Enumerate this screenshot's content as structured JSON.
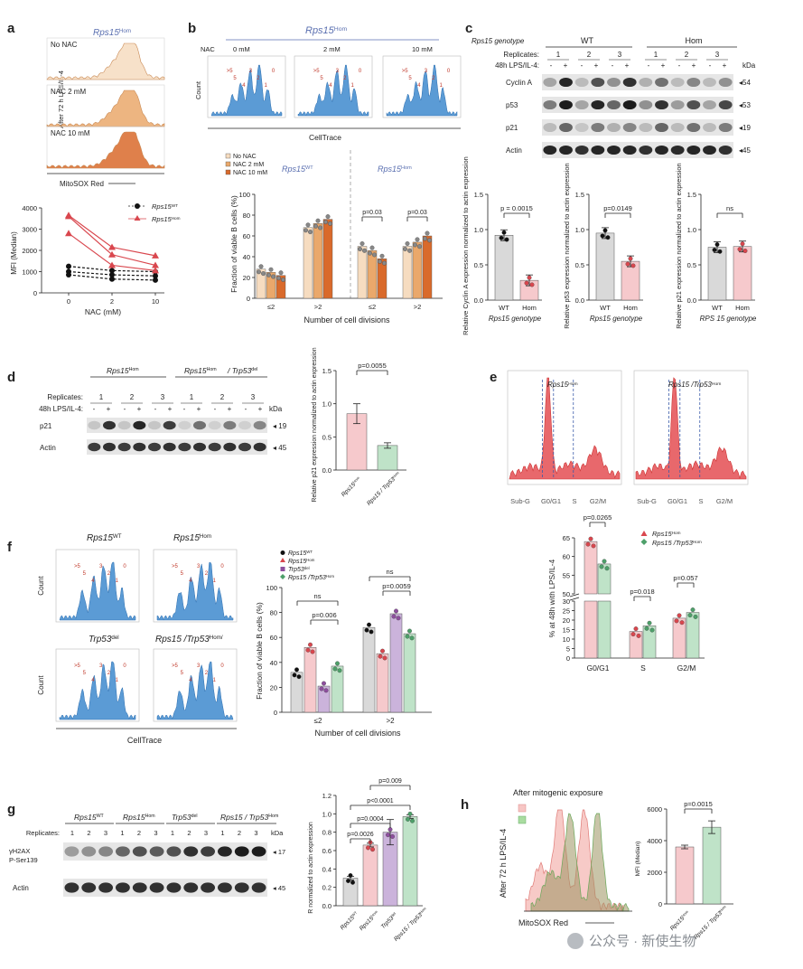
{
  "panel_letters": [
    "a",
    "b",
    "c",
    "d",
    "e",
    "f",
    "g",
    "h"
  ],
  "colors": {
    "wt": "#111111",
    "hom": "#d9474e",
    "trp53": "#8e4f9e",
    "dbl": "#4ea06a",
    "nac0": "#f6dcc0",
    "nac2": "#eaa86b",
    "nac10": "#d96a2b",
    "blue_hist": "#5b9bd5",
    "red_hist": "#e8686c",
    "wt_fill": "#d9d9d9",
    "hom_fill": "#f6c9cc",
    "trp_fill": "#cbb3db",
    "dbl_fill": "#bfe3c8",
    "title_blue": "#5a6fb0"
  },
  "panel_a": {
    "title": "Rps15",
    "title_sup": "Hom",
    "ylabel": "After 72 h LPS/IL-4",
    "xlabel": "MitoSOX Red",
    "hist_labels": [
      "No NAC",
      "NAC 2 mM",
      "NAC 10 mM"
    ],
    "legend": [
      "Rps15",
      "Rps15"
    ],
    "legend_sup": [
      "WT",
      "Hom"
    ]
  },
  "panel_b": {
    "title": "Rps15",
    "title_sup": "Hom",
    "nac_label": "NAC",
    "conc_labels": [
      "0 mM",
      "2 mM",
      "10 mM"
    ],
    "count_label": "Count",
    "xlabel_hist": "CellTrace",
    "peak_labels": [
      ">5",
      "5",
      "4",
      "3",
      "2",
      "1",
      "0"
    ],
    "group_titles": [
      "Rps15",
      "Rps15"
    ],
    "group_sups": [
      "WT",
      "Hom"
    ],
    "pvals": [
      "p=0.03",
      "p=0.03"
    ]
  },
  "panel_c": {
    "row1": [
      "Rps15 genotype",
      "WT",
      "Hom"
    ],
    "replicates_label": "Replicates:",
    "replicates": [
      "1",
      "2",
      "3",
      "1",
      "2",
      "3"
    ],
    "lps_label": "48h LPS/IL-4:",
    "signs": [
      "-",
      "+",
      "-",
      "+",
      "-",
      "+",
      "-",
      "+",
      "-",
      "+",
      "-",
      "+"
    ],
    "kda": "kDa",
    "bands": [
      "Cyclin A",
      "p53",
      "p21",
      "Actin"
    ],
    "band_kda": [
      "54",
      "53",
      "19",
      "45"
    ],
    "sub_titles": [
      "Relative Cyclin A expression normalized to actin expression",
      "Relative p53 expression normalized to actin expression",
      "Relative p21 expression normalized to actin expression"
    ],
    "sub_xlabels": [
      "Rps15 genotype",
      "Rps15 genotype",
      "RPS 15 genotype"
    ],
    "categories": [
      "WT",
      "Hom"
    ],
    "pvals": [
      "p = 0.0015",
      "p=0.0149",
      "ns"
    ]
  },
  "panel_d": {
    "groups": [
      "Rps15",
      "Rps15",
      "/ Trp53"
    ],
    "group_sups": [
      "Hom",
      "Hom",
      "del"
    ],
    "replicates_label": "Replicates:",
    "replicates": [
      "1",
      "2",
      "3",
      "1",
      "2",
      "3"
    ],
    "lps_label": "48h LPS/IL-4:",
    "signs": [
      "-",
      "+",
      "-",
      "+",
      "-",
      "+",
      "-",
      "+",
      "-",
      "+",
      "-",
      "+"
    ],
    "kda": "kDa",
    "bands": [
      "p21",
      "Actin"
    ],
    "band_kda": [
      "19",
      "45"
    ],
    "ylabel": "Relative p21 expression normalized to actin expression",
    "categories": [
      "Rps15",
      "Rps15 / Trp53"
    ],
    "category_sups": [
      "Hom",
      "Hom",
      "del"
    ],
    "pval": "p=0.0055"
  },
  "panel_e": {
    "hist_titles": [
      "Rps15",
      "Rps15 /Trp53"
    ],
    "hist_sups": [
      "Hom",
      "Hom",
      "del"
    ],
    "hist_xlabels": [
      "Sub-G",
      "G0/G1",
      "S",
      "G2/M"
    ],
    "ylabel": "% at 48h with LPS/IL-4",
    "legend": [
      "Rps15",
      "Rps15 /Trp53"
    ],
    "legend_sups": [
      "Hom",
      "Hom",
      "del"
    ],
    "categories": [
      "G0/G1",
      "S",
      "G2/M"
    ],
    "pvals": [
      "p=0.0265",
      "p=0.018",
      "p=0.057"
    ]
  },
  "panel_f": {
    "hist_titles": [
      "Rps15",
      "Rps15",
      "Trp53",
      "Rps15 /Trp53"
    ],
    "hist_sups": [
      "WT",
      "Hom",
      "del",
      "Hom",
      "del"
    ],
    "count_label": "Count",
    "xlabel_hist": "CellTrace",
    "peak_labels": [
      ">5",
      "5",
      "4",
      "3",
      "2",
      "1",
      "0"
    ],
    "ylabel": "Fraction of viable B cells (%)",
    "xlabel": "Number of cell divisions",
    "legend": [
      "Rps15",
      "Rps15",
      "Trp53",
      "Rps15 /Trp53"
    ],
    "legend_sups": [
      "WT",
      "Hom",
      "del",
      "Hom",
      "del"
    ],
    "pvals_left": [
      "ns",
      "p=0.006"
    ],
    "pvals_right": [
      "ns",
      "p=0.0059"
    ]
  },
  "panel_g": {
    "groups": [
      "Rps15",
      "Rps15",
      "Trp53",
      "Rps15 / Trp53"
    ],
    "group_sups": [
      "WT",
      "Hom",
      "del",
      "Hom",
      "del"
    ],
    "replicates_label": "Replicates:",
    "replicates": [
      "1",
      "2",
      "3",
      "1",
      "2",
      "3",
      "1",
      "2",
      "3",
      "1",
      "2",
      "3"
    ],
    "bands": [
      "γH2AX P-Ser139",
      "Actin"
    ],
    "band_kda": [
      "17",
      "45"
    ],
    "kda": "kDa",
    "ylabel": "R normalized to actin expression",
    "categories": [
      "Rps15",
      "Rps15",
      "Trp53",
      "Rps15 / Trp53"
    ],
    "category_sups": [
      "WT",
      "Hom",
      "del",
      "Hom",
      "del"
    ],
    "pvals": [
      "p=0.0026",
      "p=0.0004",
      "p<0.0001",
      "p=0.009"
    ]
  },
  "panel_h": {
    "title": "After mitogenic exposure",
    "ylabel": "After 72 h LPS/IL-4",
    "xlabel": "MitoSOX Red",
    "bar_ylabel": "MFI (Median)",
    "categories": [
      "Rps15",
      "Rps15 / Trp53"
    ],
    "category_sups": [
      "Hom",
      "Hom",
      "del"
    ],
    "pval": "p=0.0015"
  },
  "watermark": "公众号 · 新使生物",
  "chart_data": [
    {
      "panel": "a",
      "type": "line",
      "xlabel": "NAC (mM)",
      "ylabel": "MFI (Median)",
      "x": [
        0,
        2,
        10
      ],
      "xticks": [
        "0",
        "2",
        "10"
      ],
      "ylim": [
        0,
        4000
      ],
      "yticks": [
        0,
        1000,
        2000,
        3000,
        4000
      ],
      "series": [
        {
          "name": "Rps15 WT",
          "style": "dashed",
          "color": "#111111",
          "marker": "circle",
          "values": [
            1250,
            1050,
            1000
          ]
        },
        {
          "name": "Rps15 WT",
          "style": "dashed",
          "color": "#111111",
          "marker": "circle",
          "values": [
            1000,
            850,
            800
          ]
        },
        {
          "name": "Rps15 WT",
          "style": "dashed",
          "color": "#111111",
          "marker": "circle",
          "values": [
            850,
            650,
            600
          ]
        },
        {
          "name": "Rps15 Hom",
          "style": "solid",
          "color": "#d9474e",
          "marker": "triangle",
          "values": [
            3650,
            2150,
            1750
          ]
        },
        {
          "name": "Rps15 Hom",
          "style": "solid",
          "color": "#d9474e",
          "marker": "triangle",
          "values": [
            3600,
            1800,
            1300
          ]
        },
        {
          "name": "Rps15 Hom",
          "style": "solid",
          "color": "#d9474e",
          "marker": "triangle",
          "values": [
            2800,
            1300,
            1050
          ]
        }
      ]
    },
    {
      "panel": "b",
      "type": "bar",
      "ylabel": "Fraction of viable B cells (%)",
      "xlabel": "Number of cell divisions",
      "categories": [
        "≤2",
        ">2",
        "≤2",
        ">2"
      ],
      "ylim": [
        0,
        100
      ],
      "yticks": [
        0,
        20,
        40,
        60,
        80,
        100
      ],
      "series": [
        {
          "name": "No NAC",
          "values": [
            28,
            68,
            50,
            50
          ]
        },
        {
          "name": "NAC 2 mM",
          "values": [
            25,
            72,
            46,
            54
          ]
        },
        {
          "name": "NAC 10 mM",
          "values": [
            22,
            76,
            38,
            60
          ]
        }
      ]
    },
    {
      "panel": "c1",
      "type": "bar",
      "categories": [
        "WT",
        "Hom"
      ],
      "values": [
        0.92,
        0.28
      ],
      "ylim": [
        0,
        1.5
      ],
      "yticks": [
        0,
        0.5,
        1.0,
        1.5
      ],
      "xlabel": "Rps15 genotype"
    },
    {
      "panel": "c2",
      "type": "bar",
      "categories": [
        "WT",
        "Hom"
      ],
      "values": [
        0.95,
        0.55
      ],
      "ylim": [
        0,
        1.5
      ],
      "yticks": [
        0,
        0.5,
        1.0,
        1.5
      ],
      "xlabel": "Rps15 genotype"
    },
    {
      "panel": "c3",
      "type": "bar",
      "categories": [
        "WT",
        "Hom"
      ],
      "values": [
        0.75,
        0.76
      ],
      "ylim": [
        0,
        1.5
      ],
      "yticks": [
        0,
        0.5,
        1.0,
        1.5
      ],
      "xlabel": "RPS 15 genotype"
    },
    {
      "panel": "d",
      "type": "bar",
      "categories": [
        "Rps15 Hom",
        "Rps15 Hom / Trp53 del"
      ],
      "values": [
        0.85,
        0.37
      ],
      "ylim": [
        0,
        1.5
      ],
      "yticks": [
        0,
        0.5,
        1.0,
        1.5
      ]
    },
    {
      "panel": "e",
      "type": "bar",
      "categories": [
        "G0/G1",
        "S",
        "G2/M"
      ],
      "ylabel": "% at 48h with LPS/IL-4",
      "yticks": [
        0,
        5,
        10,
        15,
        20,
        25,
        30,
        50,
        55,
        60,
        65
      ],
      "series": [
        {
          "name": "Rps15 Hom",
          "values": [
            64,
            14,
            21
          ]
        },
        {
          "name": "Rps15 Hom/Trp53 del",
          "values": [
            58,
            17,
            24
          ]
        }
      ]
    },
    {
      "panel": "f",
      "type": "bar",
      "ylabel": "Fraction of viable B cells (%)",
      "xlabel": "Number of cell divisions",
      "categories": [
        "≤2",
        ">2"
      ],
      "ylim": [
        0,
        100
      ],
      "yticks": [
        0,
        20,
        40,
        60,
        80,
        100
      ],
      "series": [
        {
          "name": "Rps15 WT",
          "values": [
            32,
            68
          ]
        },
        {
          "name": "Rps15 Hom",
          "values": [
            52,
            47
          ]
        },
        {
          "name": "Trp53 del",
          "values": [
            21,
            79
          ]
        },
        {
          "name": "Rps15 Hom/Trp53 del",
          "values": [
            37,
            63
          ]
        }
      ]
    },
    {
      "panel": "g",
      "type": "bar",
      "categories": [
        "Rps15 WT",
        "Rps15 Hom",
        "Trp53 del",
        "Rps15 Hom / Trp53 del"
      ],
      "values": [
        0.3,
        0.66,
        0.8,
        0.97
      ],
      "ylim": [
        0,
        1.2
      ],
      "yticks": [
        0,
        0.2,
        0.4,
        0.6,
        0.8,
        1.0,
        1.2
      ]
    },
    {
      "panel": "h",
      "type": "bar",
      "categories": [
        "Rps15 Hom",
        "Rps15 Hom / Trp53 del"
      ],
      "values": [
        3600,
        4850
      ],
      "ylim": [
        0,
        6000
      ],
      "yticks": [
        0,
        2000,
        4000,
        6000
      ],
      "ylabel": "MFI (Median)"
    }
  ]
}
